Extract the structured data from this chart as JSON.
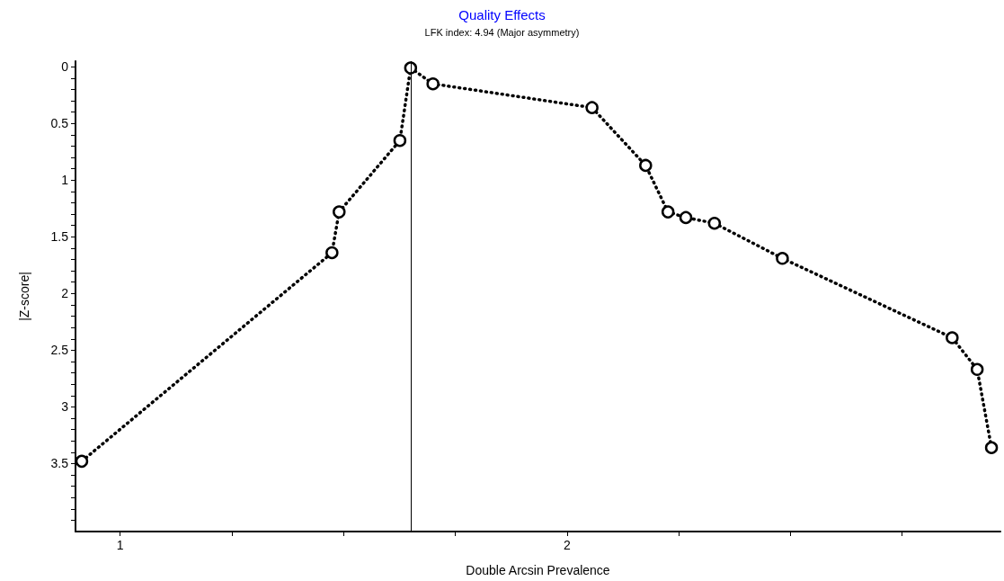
{
  "chart_data": {
    "type": "line",
    "title": "Quality Effects",
    "subtitle": "LFK index: 4.94 (Major asymmetry)",
    "xlabel": "Double Arcsin Prevalence",
    "ylabel": "|Z-score|",
    "x": [
      0.914,
      1.474,
      1.49,
      1.626,
      1.65,
      1.7,
      2.056,
      2.176,
      2.226,
      2.266,
      2.33,
      2.482,
      2.862,
      2.918,
      2.95
    ],
    "series": [
      {
        "color": "#000000",
        "values": [
          3.48,
          1.64,
          1.28,
          0.65,
          0.01,
          0.15,
          0.36,
          0.87,
          1.28,
          1.33,
          1.38,
          1.69,
          2.39,
          2.67,
          3.36
        ]
      }
    ],
    "xlim": [
      0.9,
      2.97
    ],
    "xticks": [
      1,
      {
        "value": 1.25,
        "label": null
      },
      {
        "value": 1.5,
        "label": null
      },
      {
        "value": 1.75,
        "label": null
      },
      2,
      {
        "value": 2.25,
        "label": null
      },
      {
        "value": 2.5,
        "label": null
      },
      {
        "value": 2.75,
        "label": null
      }
    ],
    "ylim": [
      4.1,
      -0.05
    ],
    "yticks": [
      0,
      {
        "value": 0.1,
        "label": null
      },
      {
        "value": 0.2,
        "label": null
      },
      {
        "value": 0.3,
        "label": null
      },
      {
        "value": 0.4,
        "label": null
      },
      0.5,
      {
        "value": 0.6,
        "label": null
      },
      {
        "value": 0.7,
        "label": null
      },
      {
        "value": 0.8,
        "label": null
      },
      {
        "value": 0.9,
        "label": null
      },
      1,
      {
        "value": 1.1,
        "label": null
      },
      {
        "value": 1.2,
        "label": null
      },
      {
        "value": 1.3,
        "label": null
      },
      {
        "value": 1.4,
        "label": null
      },
      1.5,
      {
        "value": 1.6,
        "label": null
      },
      {
        "value": 1.7,
        "label": null
      },
      {
        "value": 1.8,
        "label": null
      },
      {
        "value": 1.9,
        "label": null
      },
      2,
      {
        "value": 2.1,
        "label": null
      },
      {
        "value": 2.2,
        "label": null
      },
      {
        "value": 2.3,
        "label": null
      },
      {
        "value": 2.4,
        "label": null
      },
      2.5,
      {
        "value": 2.6,
        "label": null
      },
      {
        "value": 2.7,
        "label": null
      },
      {
        "value": 2.8,
        "label": null
      },
      {
        "value": 2.9,
        "label": null
      },
      3,
      {
        "value": 3.1,
        "label": null
      },
      {
        "value": 3.2,
        "label": null
      },
      {
        "value": 3.3,
        "label": null
      },
      {
        "value": 3.4,
        "label": null
      },
      3.5,
      {
        "value": 3.6,
        "label": null
      },
      {
        "value": 3.7,
        "label": null
      },
      {
        "value": 3.8,
        "label": null
      },
      {
        "value": 3.9,
        "label": null
      },
      {
        "value": 4,
        "label": null
      }
    ],
    "ref_lines": [
      {
        "axis": "x",
        "value": 1.65,
        "color": "#000000"
      }
    ],
    "grid": false,
    "marker": "circle",
    "line_style": "dotted"
  }
}
